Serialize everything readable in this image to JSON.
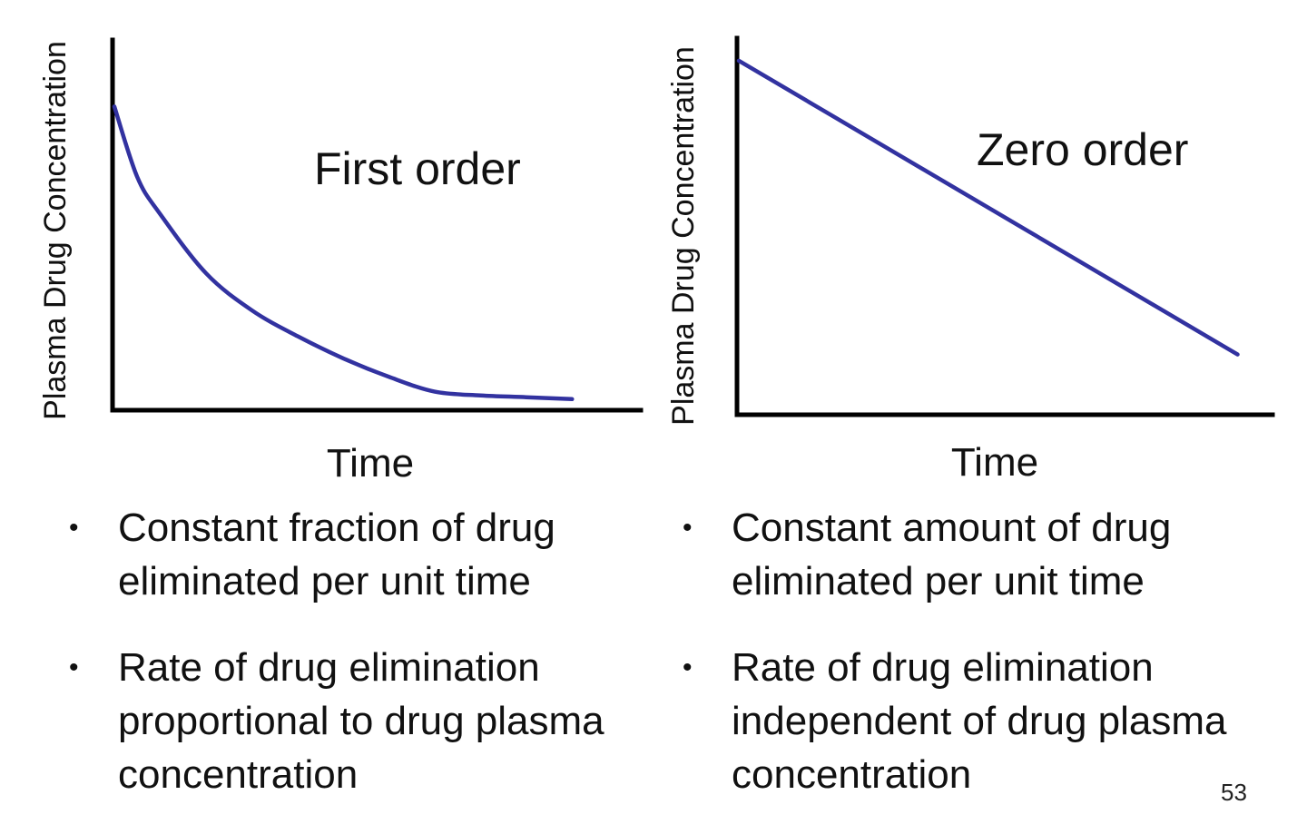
{
  "chart_data": [
    {
      "type": "line",
      "title": "First order",
      "xlabel": "Time",
      "ylabel": "Plasma Drug Concentration",
      "x": [
        0,
        0.05,
        0.1,
        0.2,
        0.3,
        0.4,
        0.5,
        0.6,
        0.7,
        0.8,
        0.9,
        1.0
      ],
      "series": [
        {
          "values": [
            0.82,
            0.63,
            0.53,
            0.37,
            0.27,
            0.2,
            0.14,
            0.09,
            0.05,
            0.04,
            0.035,
            0.03
          ]
        }
      ],
      "xlim": [
        0,
        1.15
      ],
      "ylim": [
        0,
        1
      ],
      "grid": false,
      "color": "#3232a0"
    },
    {
      "type": "line",
      "title": "Zero order",
      "xlabel": "Time",
      "ylabel": "Plasma Drug Concentration",
      "x": [
        0,
        1.0
      ],
      "series": [
        {
          "values": [
            0.94,
            0.16
          ]
        }
      ],
      "xlim": [
        0,
        1.07
      ],
      "ylim": [
        0,
        1
      ],
      "grid": false,
      "color": "#3232a0"
    }
  ],
  "bullets_first": [
    "Constant fraction of drug eliminated per unit time",
    "Rate of drug elimination proportional to drug plasma concentration"
  ],
  "bullets_zero": [
    "Constant amount of drug eliminated per unit time",
    "Rate of drug elimination independent of drug plasma concentration"
  ],
  "bullet_symbol": "•",
  "page_number": "53"
}
